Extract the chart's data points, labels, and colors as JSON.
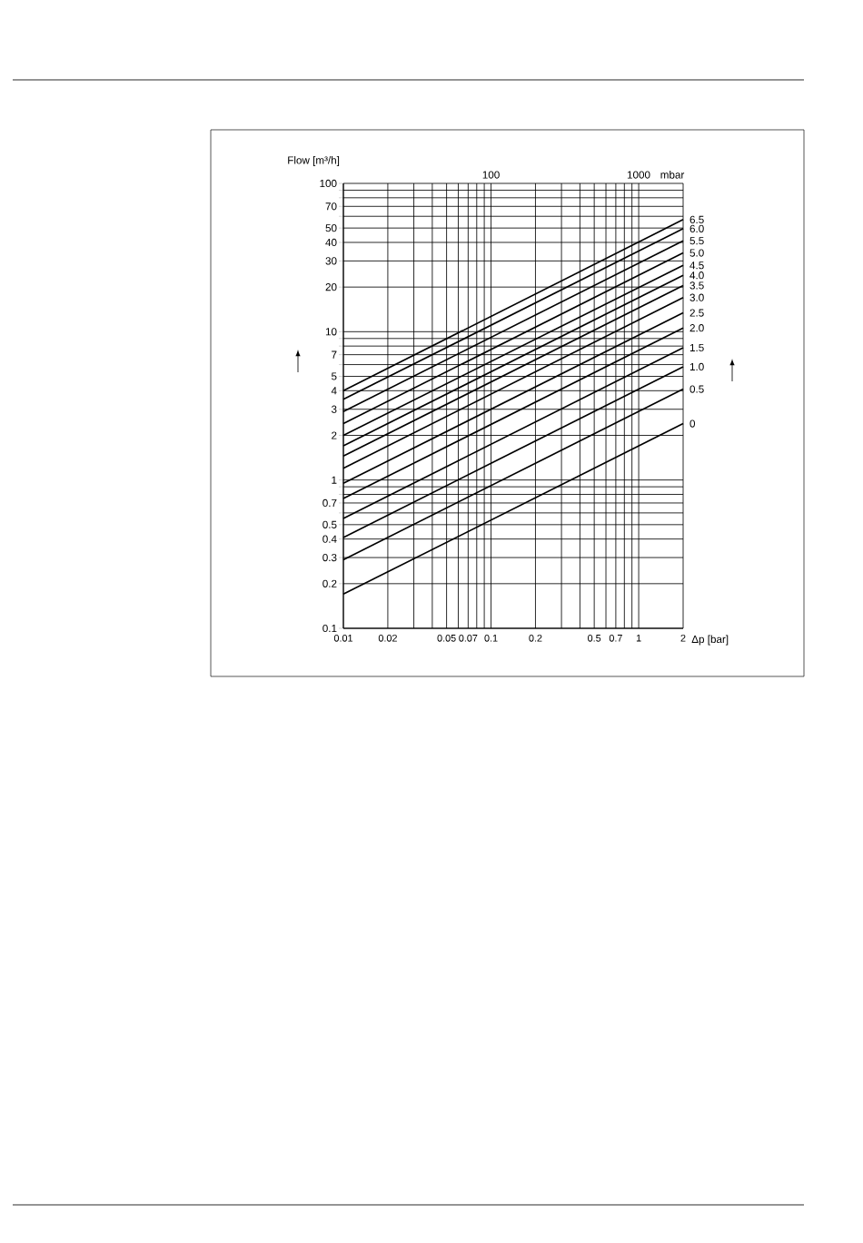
{
  "chart_data": {
    "type": "line",
    "xlabel": "Δp [bar]",
    "ylabel": "Flow [m³/h]",
    "annotations": [
      "100",
      "1000",
      "mbar"
    ],
    "log": "xy",
    "grid": true,
    "legend": false,
    "marker": "none",
    "line_style": "solid",
    "xlim": [
      0.01,
      2
    ],
    "ylim": [
      0.1,
      100
    ],
    "xticks": [
      0.01,
      0.02,
      {
        "value": 0.03,
        "label": null
      },
      {
        "value": 0.04,
        "label": null
      },
      0.05,
      {
        "value": 0.06,
        "label": null
      },
      0.07,
      {
        "value": 0.08,
        "label": null
      },
      {
        "value": 0.09,
        "label": null
      },
      0.1,
      0.2,
      {
        "value": 0.3,
        "label": null
      },
      {
        "value": 0.4,
        "label": null
      },
      0.5,
      {
        "value": 0.6,
        "label": null
      },
      0.7,
      {
        "value": 0.8,
        "label": null
      },
      {
        "value": 0.9,
        "label": null
      },
      1,
      2
    ],
    "yticks": [
      0.1,
      0.2,
      0.3,
      0.4,
      0.5,
      {
        "value": 0.6,
        "label": null
      },
      0.7,
      {
        "value": 0.8,
        "label": null
      },
      {
        "value": 0.9,
        "label": null
      },
      1,
      2,
      3,
      4,
      5,
      {
        "value": 6,
        "label": null
      },
      7,
      {
        "value": 8,
        "label": null
      },
      {
        "value": 9,
        "label": null
      },
      10,
      20,
      30,
      40,
      50,
      {
        "value": 60,
        "label": null
      },
      70,
      {
        "value": 80,
        "label": null
      },
      {
        "value": 90,
        "label": null
      },
      100
    ],
    "x": [
      0.01,
      2
    ],
    "series": [
      {
        "name": "6.5",
        "color": "#000000",
        "values": [
          4.0,
          57
        ]
      },
      {
        "name": "6.0",
        "color": "#000000",
        "values": [
          3.5,
          49.5
        ]
      },
      {
        "name": "5.5",
        "color": "#000000",
        "values": [
          2.9,
          41
        ]
      },
      {
        "name": "5.0",
        "color": "#000000",
        "values": [
          2.4,
          34
        ]
      },
      {
        "name": "4.5",
        "color": "#000000",
        "values": [
          2.0,
          28
        ]
      },
      {
        "name": "4.0",
        "color": "#000000",
        "values": [
          1.7,
          24
        ]
      },
      {
        "name": "3.5",
        "color": "#000000",
        "values": [
          1.45,
          20.5
        ]
      },
      {
        "name": "3.0",
        "color": "#000000",
        "values": [
          1.2,
          17
        ]
      },
      {
        "name": "2.5",
        "color": "#000000",
        "values": [
          0.95,
          13.4
        ]
      },
      {
        "name": "2.0",
        "color": "#000000",
        "values": [
          0.75,
          10.6
        ]
      },
      {
        "name": "1.5",
        "color": "#000000",
        "values": [
          0.55,
          7.8
        ]
      },
      {
        "name": "1.0",
        "color": "#000000",
        "values": [
          0.41,
          5.8
        ]
      },
      {
        "name": "0.5",
        "color": "#000000",
        "values": [
          0.29,
          4.1
        ]
      },
      {
        "name": "0",
        "color": "#000000",
        "values": [
          0.17,
          2.4
        ]
      }
    ]
  }
}
